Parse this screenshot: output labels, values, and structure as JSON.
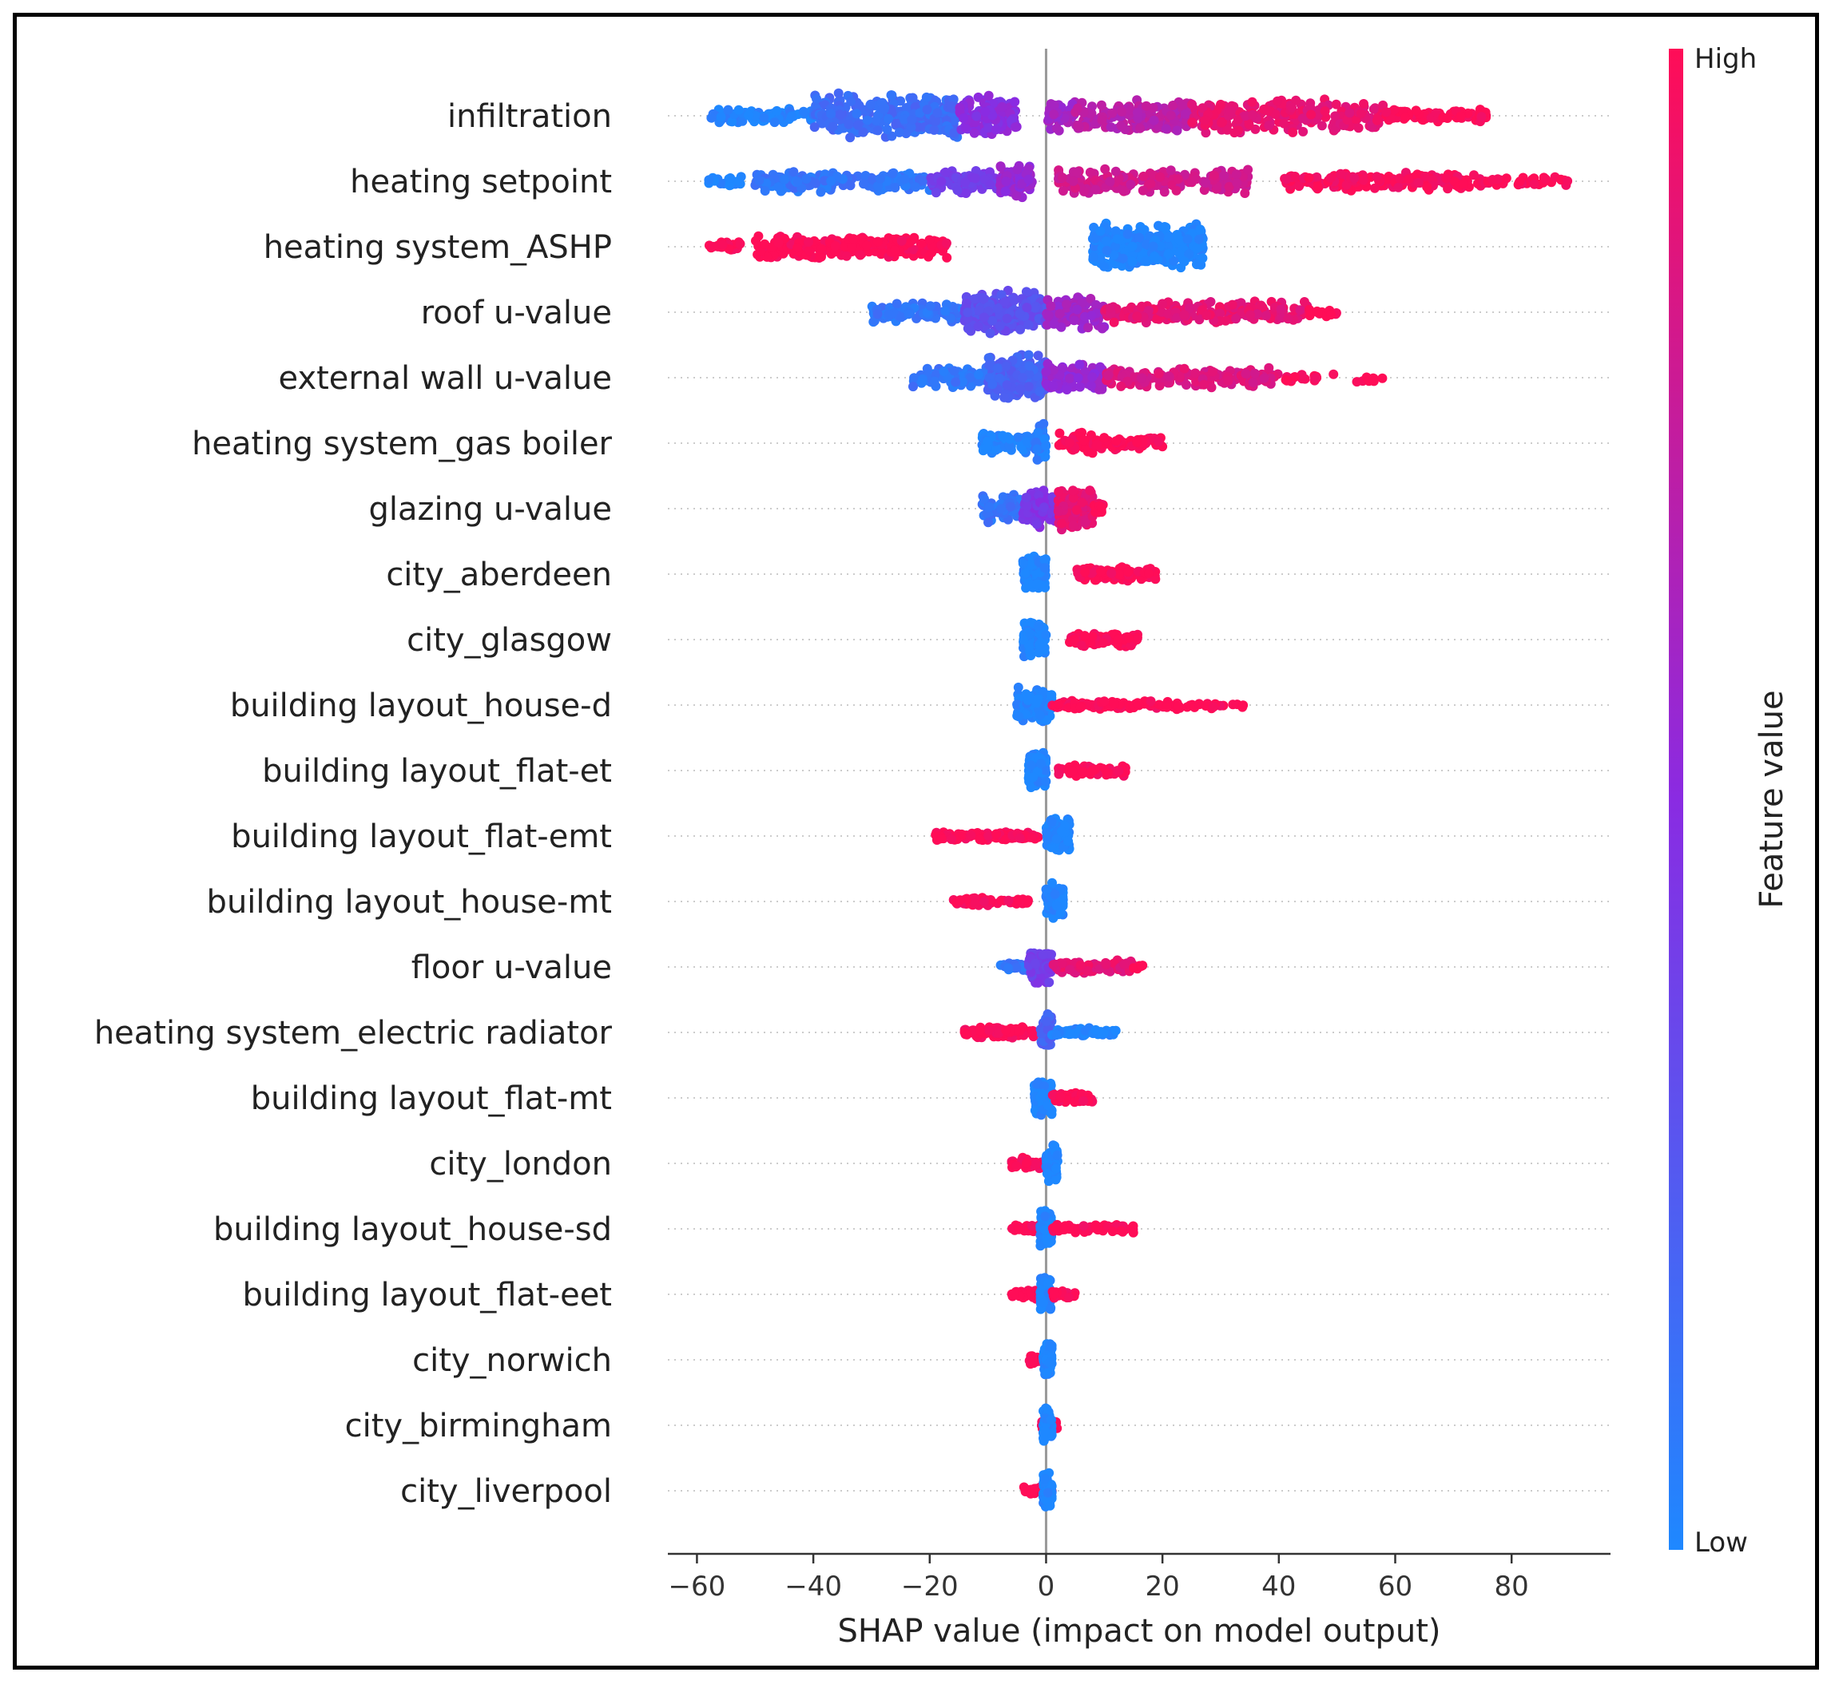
{
  "chart_data": {
    "type": "scatter",
    "subtype": "shap-beeswarm",
    "title": "",
    "xlabel": "SHAP value (impact on model output)",
    "ylabel": "",
    "xlim": [
      -65,
      97
    ],
    "xticks": [
      -60,
      -40,
      -20,
      0,
      20,
      40,
      60,
      80
    ],
    "tick_labels": [
      "−60",
      "−40",
      "−20",
      "0",
      "20",
      "40",
      "60",
      "80"
    ],
    "grid": false,
    "colorbar": {
      "title": "Feature value",
      "high_label": "High",
      "low_label": "Low",
      "low_color": "#1e88ff",
      "high_color": "#ff0d57"
    },
    "features": [
      {
        "name": "infiltration",
        "segments": [
          {
            "from": -58,
            "to": -40,
            "spread": 0.35,
            "color": 0.02,
            "n": 90
          },
          {
            "from": -40,
            "to": -15,
            "spread": 1.0,
            "color": 0.15,
            "n": 260
          },
          {
            "from": -15,
            "to": -5,
            "spread": 0.9,
            "color": 0.5,
            "n": 120
          },
          {
            "from": 0,
            "to": 5,
            "spread": 0.7,
            "color": 0.6,
            "n": 50
          },
          {
            "from": 5,
            "to": 25,
            "spread": 0.7,
            "color": 0.7,
            "n": 160
          },
          {
            "from": 25,
            "to": 58,
            "spread": 0.8,
            "color": 0.9,
            "n": 220
          },
          {
            "from": 58,
            "to": 76,
            "spread": 0.3,
            "color": 1.0,
            "n": 80
          }
        ]
      },
      {
        "name": "heating setpoint",
        "segments": [
          {
            "from": -58,
            "to": -52,
            "spread": 0.2,
            "color": 0.0,
            "n": 25
          },
          {
            "from": -50,
            "to": -20,
            "spread": 0.5,
            "color": 0.1,
            "n": 170
          },
          {
            "from": -20,
            "to": -8,
            "spread": 0.6,
            "color": 0.4,
            "n": 80
          },
          {
            "from": -8,
            "to": -2,
            "spread": 0.8,
            "color": 0.55,
            "n": 60
          },
          {
            "from": 2,
            "to": 35,
            "spread": 0.55,
            "color": 0.8,
            "n": 180
          },
          {
            "from": 41,
            "to": 75,
            "spread": 0.4,
            "color": 0.98,
            "n": 170
          },
          {
            "from": 75,
            "to": 90,
            "spread": 0.2,
            "color": 1.0,
            "n": 40
          }
        ]
      },
      {
        "name": "heating system_ASHP",
        "segments": [
          {
            "from": -58,
            "to": -52,
            "spread": 0.2,
            "color": 1.0,
            "n": 25
          },
          {
            "from": -50,
            "to": -17,
            "spread": 0.5,
            "color": 1.0,
            "n": 260
          },
          {
            "from": 8,
            "to": 27,
            "spread": 1.0,
            "color": 0.0,
            "n": 320
          }
        ]
      },
      {
        "name": "roof u-value",
        "segments": [
          {
            "from": -30,
            "to": -14,
            "spread": 0.45,
            "color": 0.1,
            "n": 90
          },
          {
            "from": -14,
            "to": 0,
            "spread": 1.0,
            "color": 0.3,
            "n": 220
          },
          {
            "from": 0,
            "to": 10,
            "spread": 0.75,
            "color": 0.6,
            "n": 110
          },
          {
            "from": 10,
            "to": 45,
            "spread": 0.5,
            "color": 0.9,
            "n": 200
          },
          {
            "from": 45,
            "to": 52,
            "spread": 0.2,
            "color": 1.0,
            "n": 15
          }
        ]
      },
      {
        "name": "external wall u-value",
        "segments": [
          {
            "from": -23,
            "to": -10,
            "spread": 0.45,
            "color": 0.1,
            "n": 80
          },
          {
            "from": -10,
            "to": 0,
            "spread": 1.0,
            "color": 0.2,
            "n": 180
          },
          {
            "from": 0,
            "to": 10,
            "spread": 0.6,
            "color": 0.55,
            "n": 90
          },
          {
            "from": 10,
            "to": 40,
            "spread": 0.45,
            "color": 0.85,
            "n": 170
          },
          {
            "from": 40,
            "to": 58,
            "spread": 0.2,
            "color": 1.0,
            "n": 25
          }
        ]
      },
      {
        "name": "heating system_gas boiler",
        "segments": [
          {
            "from": -11,
            "to": -2,
            "spread": 0.5,
            "color": 0.0,
            "n": 90
          },
          {
            "from": -2,
            "to": 0,
            "spread": 0.9,
            "color": 0.05,
            "n": 50
          },
          {
            "from": 2,
            "to": 8,
            "spread": 0.5,
            "color": 1.0,
            "n": 60
          },
          {
            "from": 8,
            "to": 20,
            "spread": 0.3,
            "color": 1.0,
            "n": 70
          }
        ]
      },
      {
        "name": "glazing u-value",
        "segments": [
          {
            "from": -11,
            "to": -4,
            "spread": 0.6,
            "color": 0.1,
            "n": 70
          },
          {
            "from": -4,
            "to": 2,
            "spread": 0.8,
            "color": 0.45,
            "n": 90
          },
          {
            "from": 2,
            "to": 8,
            "spread": 1.0,
            "color": 0.9,
            "n": 120
          },
          {
            "from": 8,
            "to": 10,
            "spread": 0.4,
            "color": 1.0,
            "n": 15
          }
        ]
      },
      {
        "name": "city_aberdeen",
        "segments": [
          {
            "from": -4,
            "to": 0,
            "spread": 0.8,
            "color": 0.0,
            "n": 90
          },
          {
            "from": 5,
            "to": 19,
            "spread": 0.3,
            "color": 1.0,
            "n": 110
          }
        ]
      },
      {
        "name": "city_glasgow",
        "segments": [
          {
            "from": -4,
            "to": 0,
            "spread": 0.8,
            "color": 0.0,
            "n": 90
          },
          {
            "from": 4,
            "to": 16,
            "spread": 0.3,
            "color": 1.0,
            "n": 100
          }
        ]
      },
      {
        "name": "building layout_house-d",
        "segments": [
          {
            "from": -5,
            "to": 1,
            "spread": 0.8,
            "color": 0.0,
            "n": 110
          },
          {
            "from": 1,
            "to": 23,
            "spread": 0.2,
            "color": 1.0,
            "n": 110
          },
          {
            "from": 24,
            "to": 34,
            "spread": 0.15,
            "color": 1.0,
            "n": 18
          }
        ]
      },
      {
        "name": "building layout_flat-et",
        "segments": [
          {
            "from": -3,
            "to": 0,
            "spread": 0.8,
            "color": 0.0,
            "n": 90
          },
          {
            "from": 2,
            "to": 14,
            "spread": 0.25,
            "color": 1.0,
            "n": 80
          }
        ]
      },
      {
        "name": "building layout_flat-emt",
        "segments": [
          {
            "from": -19,
            "to": -1,
            "spread": 0.2,
            "color": 1.0,
            "n": 110
          },
          {
            "from": 0,
            "to": 4,
            "spread": 0.8,
            "color": 0.0,
            "n": 90
          }
        ]
      },
      {
        "name": "building layout_house-mt",
        "segments": [
          {
            "from": -16,
            "to": -3,
            "spread": 0.2,
            "color": 1.0,
            "n": 80
          },
          {
            "from": 0,
            "to": 3,
            "spread": 0.8,
            "color": 0.0,
            "n": 80
          }
        ]
      },
      {
        "name": "floor u-value",
        "segments": [
          {
            "from": -8,
            "to": -3,
            "spread": 0.2,
            "color": 0.1,
            "n": 25
          },
          {
            "from": -3,
            "to": 1,
            "spread": 0.8,
            "color": 0.4,
            "n": 80
          },
          {
            "from": 1,
            "to": 15,
            "spread": 0.3,
            "color": 0.9,
            "n": 80
          },
          {
            "from": 15,
            "to": 17,
            "spread": 0.1,
            "color": 1.0,
            "n": 5
          }
        ]
      },
      {
        "name": "heating system_electric radiator",
        "segments": [
          {
            "from": -14,
            "to": -1,
            "spread": 0.25,
            "color": 1.0,
            "n": 100
          },
          {
            "from": -1,
            "to": 1,
            "spread": 0.8,
            "color": 0.2,
            "n": 50
          },
          {
            "from": 1,
            "to": 12,
            "spread": 0.2,
            "color": 0.0,
            "n": 60
          }
        ]
      },
      {
        "name": "building layout_flat-mt",
        "segments": [
          {
            "from": -2,
            "to": 1,
            "spread": 0.8,
            "color": 0.0,
            "n": 90
          },
          {
            "from": 1,
            "to": 8,
            "spread": 0.25,
            "color": 1.0,
            "n": 50
          }
        ]
      },
      {
        "name": "city_london",
        "segments": [
          {
            "from": -6,
            "to": 0,
            "spread": 0.25,
            "color": 1.0,
            "n": 50
          },
          {
            "from": 0,
            "to": 2,
            "spread": 0.8,
            "color": 0.0,
            "n": 90
          }
        ]
      },
      {
        "name": "building layout_house-sd",
        "segments": [
          {
            "from": -6,
            "to": 0,
            "spread": 0.2,
            "color": 1.0,
            "n": 40
          },
          {
            "from": -1,
            "to": 1,
            "spread": 0.8,
            "color": 0.0,
            "n": 90
          },
          {
            "from": 1,
            "to": 15,
            "spread": 0.2,
            "color": 1.0,
            "n": 70
          }
        ]
      },
      {
        "name": "building layout_flat-eet",
        "segments": [
          {
            "from": -6,
            "to": -1,
            "spread": 0.2,
            "color": 1.0,
            "n": 30
          },
          {
            "from": -1,
            "to": 1,
            "spread": 0.8,
            "color": 0.0,
            "n": 90
          },
          {
            "from": 1,
            "to": 5,
            "spread": 0.2,
            "color": 1.0,
            "n": 25
          }
        ]
      },
      {
        "name": "city_norwich",
        "segments": [
          {
            "from": -3,
            "to": 0,
            "spread": 0.2,
            "color": 1.0,
            "n": 20
          },
          {
            "from": -0.5,
            "to": 1,
            "spread": 0.8,
            "color": 0.0,
            "n": 90
          }
        ]
      },
      {
        "name": "city_birmingham",
        "segments": [
          {
            "from": -1,
            "to": 2,
            "spread": 0.25,
            "color": 1.0,
            "n": 25
          },
          {
            "from": -0.5,
            "to": 1,
            "spread": 0.8,
            "color": 0.0,
            "n": 90
          }
        ]
      },
      {
        "name": "city_liverpool",
        "segments": [
          {
            "from": -4,
            "to": 1,
            "spread": 0.2,
            "color": 1.0,
            "n": 18
          },
          {
            "from": -0.5,
            "to": 1,
            "spread": 0.8,
            "color": 0.0,
            "n": 90
          }
        ]
      }
    ]
  }
}
